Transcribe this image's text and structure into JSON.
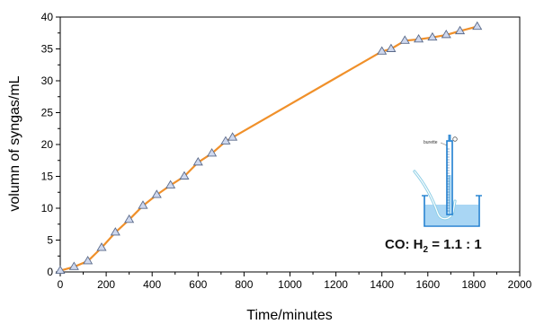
{
  "chart_data": {
    "type": "line",
    "xlabel": "Time/minutes",
    "ylabel": "volumn of syngas/mL",
    "xlim": [
      0,
      2000
    ],
    "ylim": [
      0,
      40
    ],
    "xticks": [
      0,
      200,
      400,
      600,
      800,
      1000,
      1200,
      1400,
      1600,
      1800,
      2000
    ],
    "yticks": [
      0,
      5,
      10,
      15,
      20,
      25,
      30,
      35,
      40
    ],
    "grid": false,
    "line_color": "#f0902a",
    "marker": "triangle",
    "marker_fill": "#cfd8ee",
    "marker_stroke": "#5a6a8a",
    "series": [
      {
        "x": [
          0,
          60,
          120,
          180,
          240,
          300,
          360,
          420,
          480,
          540,
          600,
          660,
          720,
          750,
          1400,
          1440,
          1500,
          1560,
          1620,
          1680,
          1740,
          1815
        ],
        "y": [
          0.2,
          0.8,
          1.7,
          3.8,
          6.2,
          8.2,
          10.4,
          12.1,
          13.6,
          15.0,
          17.2,
          18.6,
          20.5,
          21.1,
          34.6,
          35.0,
          36.3,
          36.5,
          36.8,
          37.2,
          37.8,
          38.5
        ]
      }
    ],
    "annotations": {
      "ratio_prefix": "CO: H",
      "ratio_sub": "2",
      "ratio_suffix": " = 1.1 : 1",
      "inset_label": "burette"
    }
  }
}
